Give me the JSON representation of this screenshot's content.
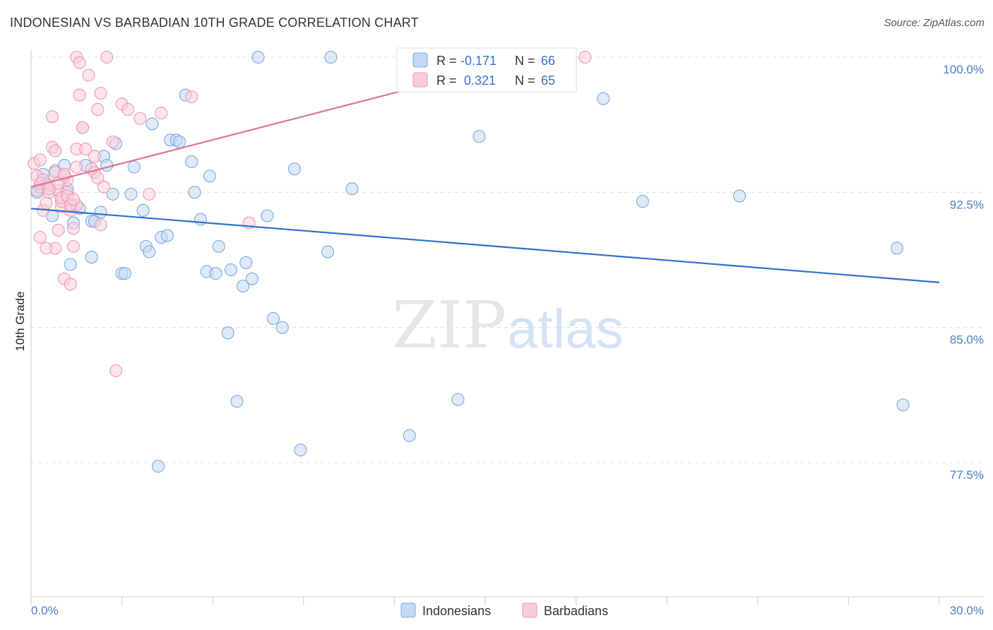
{
  "title": "INDONESIAN VS BARBADIAN 10TH GRADE CORRELATION CHART",
  "source": "Source: ZipAtlas.com",
  "watermark": {
    "zip": "ZIP",
    "atlas": "atlas"
  },
  "colors": {
    "indonesians": "#7aa8e0",
    "indonesians_fill": "#c4d8f3",
    "indonesians_line": "#2f6fcc",
    "barbadians": "#ee99b4",
    "barbadians_fill": "#f8cdd9",
    "barbadians_line": "#e0709a",
    "axis_label": "#4a7cc9"
  },
  "legend_box": {
    "rows": [
      {
        "r_label": "R =",
        "r_value": "-0.171",
        "n_label": "N =",
        "n_value": "66"
      },
      {
        "r_label": "R =",
        "r_value": " 0.321",
        "n_label": "N =",
        "n_value": "65"
      }
    ]
  },
  "chart_data": {
    "type": "scatter",
    "xlabel": "",
    "ylabel": "10th Grade",
    "xlim": [
      0,
      30
    ],
    "ylim": [
      70.5,
      101
    ],
    "x_tick_labels": [
      "0.0%",
      "30.0%"
    ],
    "y_ticks": [
      77.5,
      85.0,
      92.5,
      100.0
    ],
    "y_tick_labels": [
      "77.5%",
      "85.0%",
      "92.5%",
      "100.0%"
    ],
    "grid": "horizontal dashed",
    "legend": "bottom-center",
    "series": [
      {
        "name": "Indonesians",
        "trend": {
          "x": [
            0,
            30
          ],
          "y": [
            91.6,
            87.5
          ]
        },
        "points": [
          [
            0.2,
            92.5
          ],
          [
            0.4,
            93.5
          ],
          [
            0.5,
            93.0
          ],
          [
            0.7,
            91.2
          ],
          [
            0.8,
            93.7
          ],
          [
            1.0,
            92.2
          ],
          [
            1.1,
            94.0
          ],
          [
            1.3,
            88.5
          ],
          [
            1.4,
            90.8
          ],
          [
            1.6,
            91.6
          ],
          [
            1.8,
            94.0
          ],
          [
            2.0,
            90.9
          ],
          [
            2.0,
            88.9
          ],
          [
            2.1,
            90.9
          ],
          [
            2.3,
            91.4
          ],
          [
            2.4,
            94.5
          ],
          [
            2.5,
            94.0
          ],
          [
            2.7,
            92.4
          ],
          [
            2.8,
            95.2
          ],
          [
            3.0,
            88.0
          ],
          [
            3.1,
            88.0
          ],
          [
            3.3,
            92.4
          ],
          [
            3.4,
            93.9
          ],
          [
            3.7,
            91.5
          ],
          [
            3.8,
            89.5
          ],
          [
            3.9,
            89.2
          ],
          [
            4.0,
            96.3
          ],
          [
            4.2,
            77.3
          ],
          [
            4.3,
            90.0
          ],
          [
            4.5,
            90.1
          ],
          [
            4.6,
            95.4
          ],
          [
            4.8,
            95.4
          ],
          [
            4.9,
            95.3
          ],
          [
            5.1,
            97.9
          ],
          [
            5.3,
            94.2
          ],
          [
            5.4,
            92.5
          ],
          [
            5.6,
            91.0
          ],
          [
            5.8,
            88.1
          ],
          [
            5.9,
            93.4
          ],
          [
            6.1,
            88.0
          ],
          [
            6.2,
            89.5
          ],
          [
            6.5,
            84.7
          ],
          [
            6.6,
            88.2
          ],
          [
            6.8,
            80.9
          ],
          [
            7.0,
            87.3
          ],
          [
            7.1,
            88.6
          ],
          [
            7.3,
            87.7
          ],
          [
            7.5,
            100.0
          ],
          [
            7.8,
            91.2
          ],
          [
            8.0,
            85.5
          ],
          [
            8.3,
            85.0
          ],
          [
            8.7,
            93.8
          ],
          [
            8.9,
            78.2
          ],
          [
            9.8,
            89.2
          ],
          [
            9.9,
            100.0
          ],
          [
            10.6,
            92.7
          ],
          [
            12.5,
            79.0
          ],
          [
            14.1,
            81.0
          ],
          [
            14.8,
            95.6
          ],
          [
            18.9,
            97.7
          ],
          [
            20.2,
            92.0
          ],
          [
            23.4,
            92.3
          ],
          [
            28.6,
            89.4
          ],
          [
            28.8,
            80.7
          ],
          [
            0.3,
            92.8
          ],
          [
            1.2,
            92.7
          ]
        ]
      },
      {
        "name": "Barbadians",
        "trend": {
          "x": [
            0,
            17
          ],
          "y": [
            92.8,
            100.2
          ]
        },
        "points": [
          [
            0.1,
            94.1
          ],
          [
            0.2,
            93.4
          ],
          [
            0.2,
            92.6
          ],
          [
            0.3,
            94.3
          ],
          [
            0.3,
            93.0
          ],
          [
            0.4,
            91.5
          ],
          [
            0.5,
            91.9
          ],
          [
            0.6,
            92.5
          ],
          [
            0.6,
            92.9
          ],
          [
            0.7,
            96.7
          ],
          [
            0.7,
            95.0
          ],
          [
            0.8,
            94.8
          ],
          [
            0.8,
            89.4
          ],
          [
            0.8,
            93.6
          ],
          [
            0.9,
            90.4
          ],
          [
            0.9,
            92.6
          ],
          [
            1.0,
            91.7
          ],
          [
            1.0,
            92.0
          ],
          [
            1.1,
            93.4
          ],
          [
            1.1,
            87.7
          ],
          [
            1.2,
            92.5
          ],
          [
            1.2,
            93.2
          ],
          [
            1.3,
            91.5
          ],
          [
            1.3,
            87.4
          ],
          [
            1.4,
            90.5
          ],
          [
            1.4,
            89.5
          ],
          [
            1.5,
            91.8
          ],
          [
            1.5,
            94.9
          ],
          [
            1.5,
            93.9
          ],
          [
            1.5,
            100.0
          ],
          [
            1.6,
            99.7
          ],
          [
            1.6,
            97.9
          ],
          [
            1.7,
            96.1
          ],
          [
            1.7,
            96.1
          ],
          [
            1.8,
            94.9
          ],
          [
            1.9,
            99.0
          ],
          [
            2.0,
            93.8
          ],
          [
            2.1,
            94.5
          ],
          [
            2.1,
            93.6
          ],
          [
            2.2,
            97.1
          ],
          [
            2.2,
            93.3
          ],
          [
            2.3,
            98.0
          ],
          [
            2.3,
            90.7
          ],
          [
            2.4,
            92.8
          ],
          [
            2.5,
            100.0
          ],
          [
            2.7,
            95.3
          ],
          [
            2.8,
            82.6
          ],
          [
            3.0,
            97.4
          ],
          [
            3.2,
            97.1
          ],
          [
            3.6,
            96.6
          ],
          [
            3.9,
            92.4
          ],
          [
            4.3,
            96.9
          ],
          [
            5.3,
            97.8
          ],
          [
            7.2,
            90.8
          ],
          [
            18.3,
            100.0
          ],
          [
            0.4,
            93.2
          ],
          [
            0.5,
            89.4
          ],
          [
            0.6,
            92.7
          ],
          [
            0.9,
            93.0
          ],
          [
            1.0,
            92.2
          ],
          [
            1.1,
            93.5
          ],
          [
            1.2,
            92.3
          ],
          [
            1.3,
            91.8
          ],
          [
            1.4,
            92.1
          ],
          [
            0.3,
            90.0
          ]
        ]
      }
    ]
  }
}
